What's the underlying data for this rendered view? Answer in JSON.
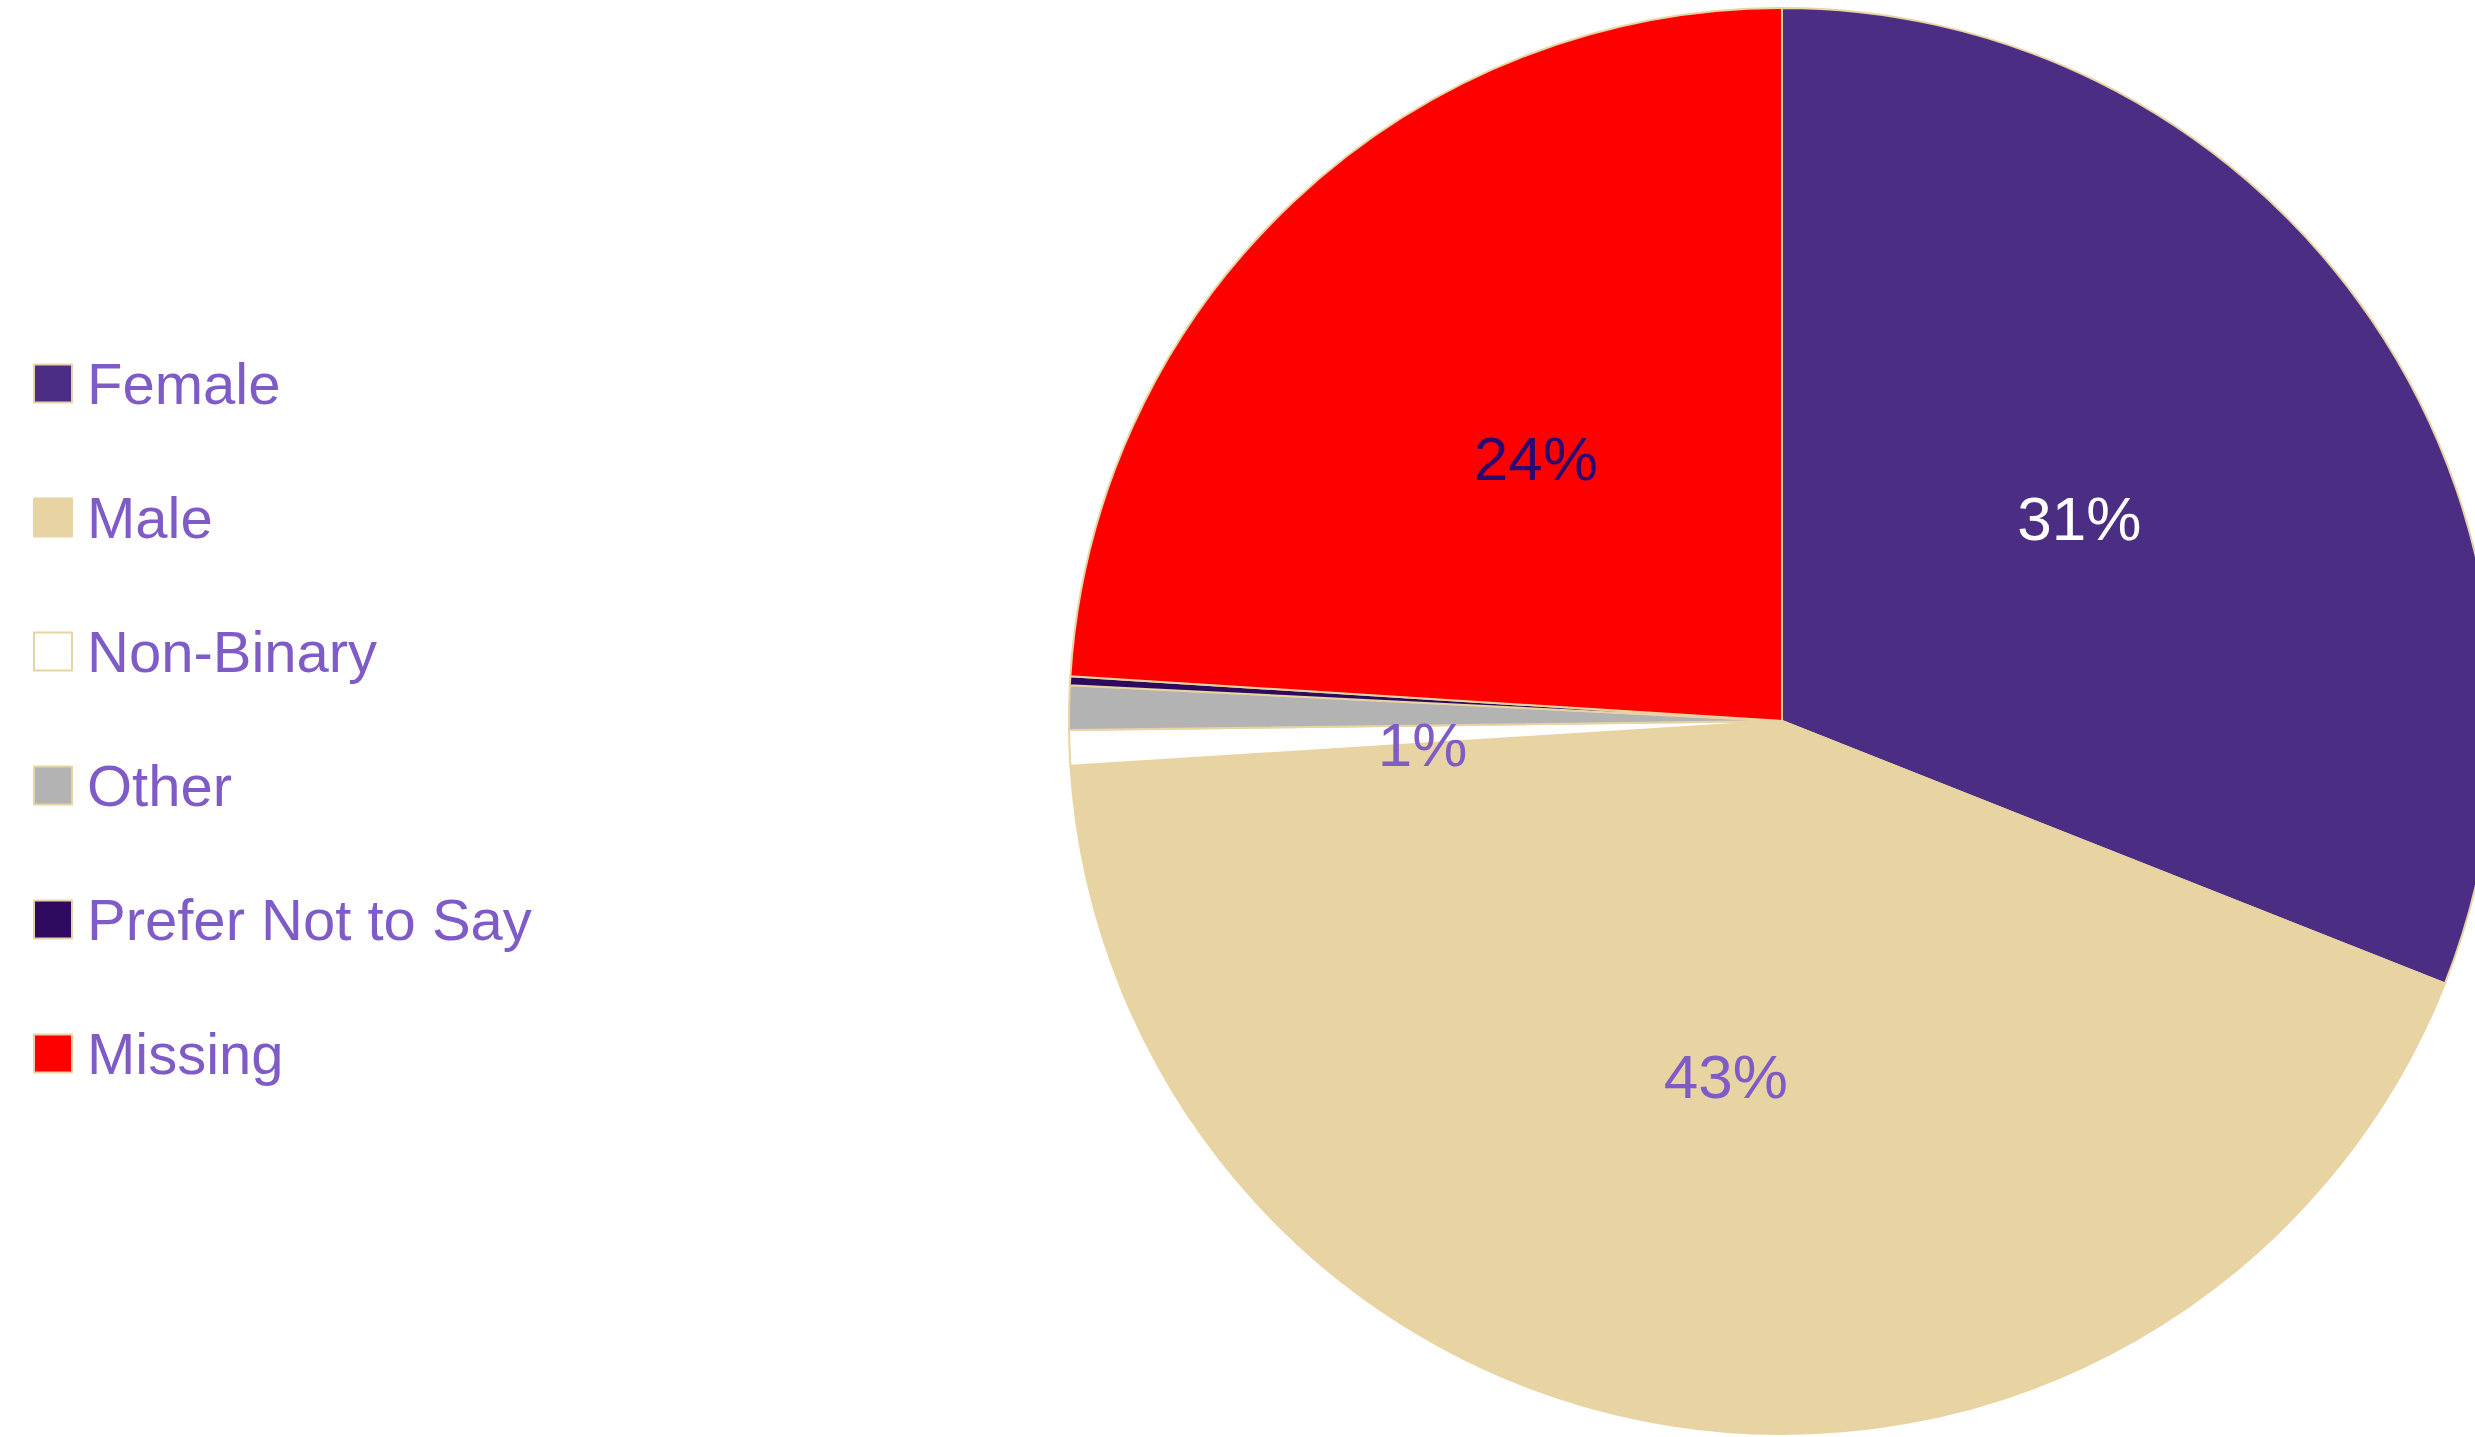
{
  "chart_data": {
    "type": "pie",
    "categories": [
      "Female",
      "Male",
      "Non-Binary",
      "Other",
      "Prefer Not to Say",
      "Missing"
    ],
    "values": [
      31,
      43,
      0.8,
      1,
      0.2,
      24
    ],
    "colors": [
      "#4b2e83",
      "#e8d3a2",
      "#ffffff",
      "#b3b3b3",
      "#2e0a5e",
      "#ff0000"
    ],
    "value_labels": [
      "31%",
      "43%",
      null,
      "1%",
      null,
      "24%"
    ],
    "legend": "left"
  }
}
